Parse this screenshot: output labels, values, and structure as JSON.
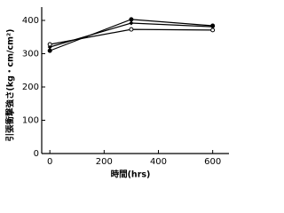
{
  "chart_data": {
    "type": "line",
    "x_label": "時間(hrs)",
    "y_label": "引張衝撃強さ(kg・cm/cm²)",
    "x": [
      0,
      300,
      600
    ],
    "series": [
      {
        "color": "#000000",
        "marker": "filled-circle",
        "values": [
          309,
          403,
          384
        ]
      },
      {
        "color": "#000000",
        "marker": "filled-diamond",
        "values": [
          320,
          392,
          381
        ]
      },
      {
        "color": "#000000",
        "marker": "open-circle",
        "values": [
          328,
          373,
          371
        ]
      }
    ],
    "xlim": [
      -30,
      660
    ],
    "ylim": [
      0,
      440
    ],
    "xticks": [
      0,
      200,
      400,
      600
    ],
    "yticks": [
      0,
      100,
      200,
      300,
      400
    ],
    "grid": false
  }
}
